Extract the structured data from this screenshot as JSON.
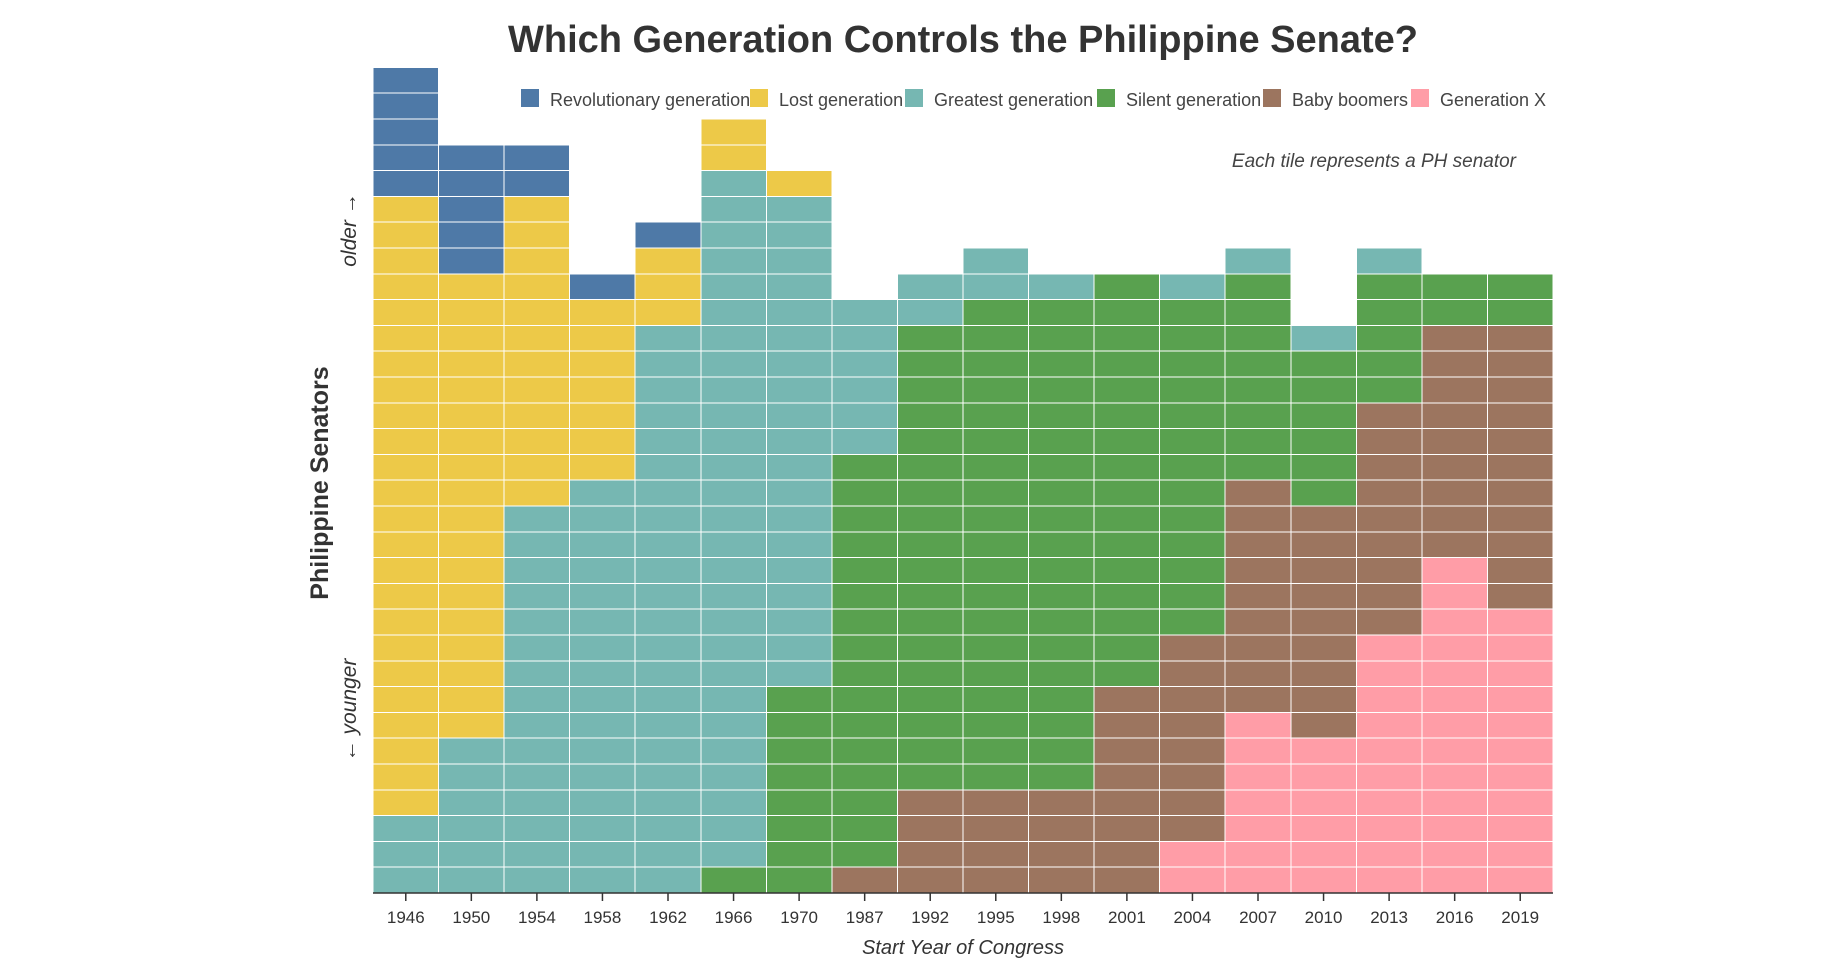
{
  "chart_data": {
    "type": "waffle",
    "title": "Which Generation Controls the Philippine Senate?",
    "xlabel": "Start Year of Congress",
    "ylabel": "Philippine Senators",
    "direction_labels": {
      "older": "older →",
      "younger": "← younger"
    },
    "note": "Each tile represents a PH senator",
    "legend_position": "top",
    "generations": [
      {
        "name": "Revolutionary generation",
        "color": "#4E79A7"
      },
      {
        "name": "Lost generation",
        "color": "#EDC948"
      },
      {
        "name": "Greatest generation",
        "color": "#76B7B2"
      },
      {
        "name": "Silent generation",
        "color": "#59A14F"
      },
      {
        "name": "Baby boomers",
        "color": "#9C755F"
      },
      {
        "name": "Generation X",
        "color": "#FF9DA7"
      }
    ],
    "categories": [
      "1946",
      "1950",
      "1954",
      "1958",
      "1962",
      "1966",
      "1970",
      "1987",
      "1992",
      "1995",
      "1998",
      "2001",
      "2004",
      "2007",
      "2010",
      "2013",
      "2016",
      "2019"
    ],
    "series": [
      {
        "name": "Revolutionary generation",
        "values": [
          5,
          5,
          2,
          1,
          1,
          0,
          0,
          0,
          0,
          0,
          0,
          0,
          0,
          0,
          0,
          0,
          0,
          0
        ]
      },
      {
        "name": "Lost generation",
        "values": [
          24,
          18,
          12,
          7,
          3,
          2,
          1,
          0,
          0,
          0,
          0,
          0,
          0,
          0,
          0,
          0,
          0,
          0
        ]
      },
      {
        "name": "Greatest generation",
        "values": [
          3,
          6,
          15,
          16,
          22,
          27,
          19,
          6,
          2,
          2,
          1,
          0,
          1,
          1,
          1,
          1,
          0,
          0
        ]
      },
      {
        "name": "Silent generation",
        "values": [
          0,
          0,
          0,
          0,
          0,
          1,
          8,
          16,
          18,
          19,
          19,
          16,
          13,
          8,
          6,
          5,
          2,
          2
        ]
      },
      {
        "name": "Baby boomers",
        "values": [
          0,
          0,
          0,
          0,
          0,
          0,
          0,
          1,
          4,
          4,
          4,
          8,
          8,
          9,
          9,
          9,
          9,
          11
        ]
      },
      {
        "name": "Generation X",
        "values": [
          0,
          0,
          0,
          0,
          0,
          0,
          0,
          0,
          0,
          0,
          0,
          0,
          2,
          7,
          6,
          10,
          13,
          11
        ]
      }
    ]
  }
}
